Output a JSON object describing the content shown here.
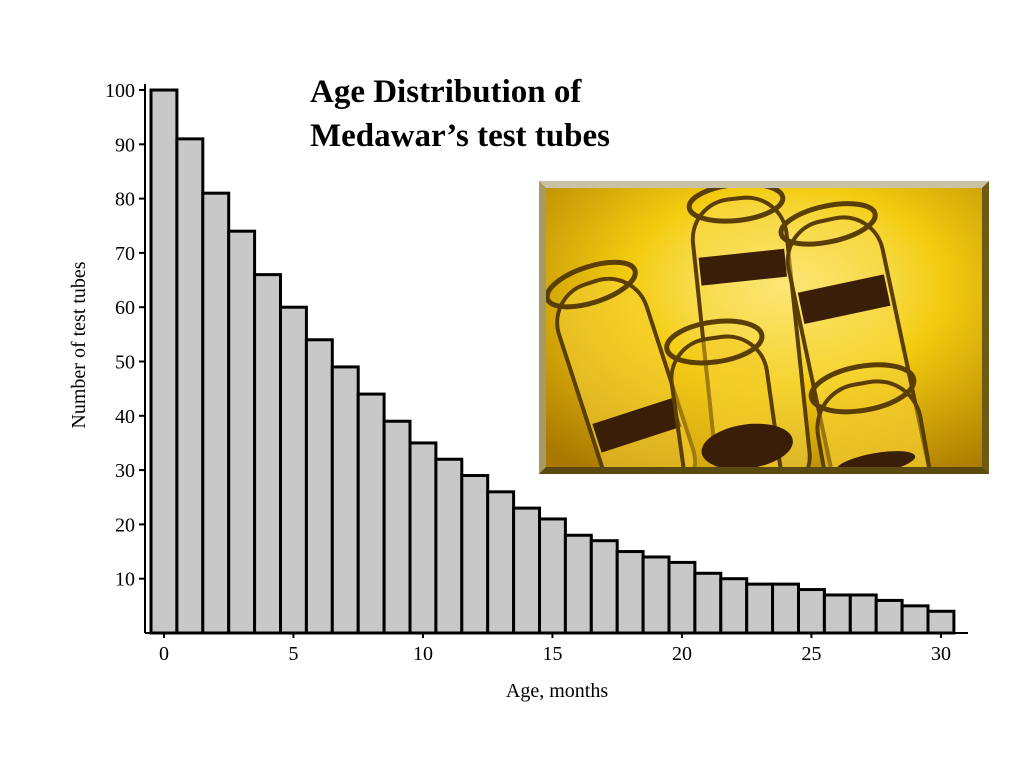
{
  "title": {
    "line1": "Age Distribution of",
    "line2": "Medawar’s test tubes"
  },
  "photo": {
    "icon": "test-tubes-photo-icon",
    "colors": {
      "background": "#e8b400",
      "liquid": "#3a1e08"
    }
  },
  "chart_data": {
    "type": "bar",
    "title": "Age Distribution of Medawar’s test tubes",
    "xlabel": "Age, months",
    "ylabel": "Number of test tubes",
    "categories": [
      0,
      1,
      2,
      3,
      4,
      5,
      6,
      7,
      8,
      9,
      10,
      11,
      12,
      13,
      14,
      15,
      16,
      17,
      18,
      19,
      20,
      21,
      22,
      23,
      24,
      25,
      26,
      27,
      28,
      29,
      30
    ],
    "values": [
      100,
      91,
      81,
      74,
      66,
      60,
      54,
      49,
      44,
      39,
      35,
      32,
      29,
      26,
      23,
      21,
      18,
      17,
      15,
      14,
      13,
      11,
      10,
      9,
      9,
      8,
      7,
      7,
      6,
      5,
      4
    ],
    "xticks": [
      0,
      5,
      10,
      15,
      20,
      25,
      30
    ],
    "yticks": [
      10,
      20,
      30,
      40,
      50,
      60,
      70,
      80,
      90,
      100
    ],
    "ylim": [
      0,
      100
    ],
    "grid": false,
    "colors": {
      "bar_fill": "#c8c8c8",
      "bar_edge": "#000000"
    }
  }
}
